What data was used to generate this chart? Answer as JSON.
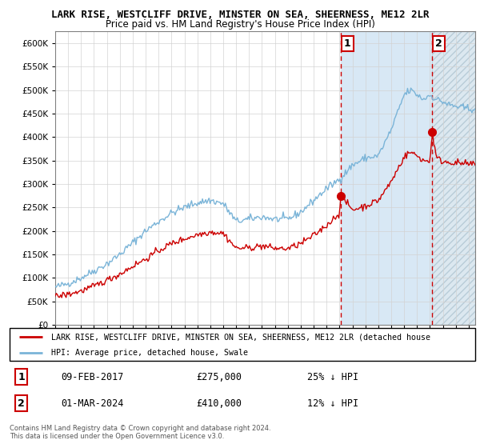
{
  "title": "LARK RISE, WESTCLIFF DRIVE, MINSTER ON SEA, SHEERNESS, ME12 2LR",
  "subtitle": "Price paid vs. HM Land Registry's House Price Index (HPI)",
  "yticks": [
    0,
    50000,
    100000,
    150000,
    200000,
    250000,
    300000,
    350000,
    400000,
    450000,
    500000,
    550000,
    600000
  ],
  "ylim": [
    0,
    625000
  ],
  "xlim_start": 1995.0,
  "xlim_end": 2027.5,
  "hpi_color": "#7ab4d8",
  "price_color": "#cc0000",
  "sale1_x": 2017.1,
  "sale1_y": 275000,
  "sale2_x": 2024.17,
  "sale2_y": 410000,
  "bg_color_between": "#d8e8f5",
  "bg_color_after": "#dce8f0",
  "hatch_color": "#b8ccd8",
  "legend_line1": "LARK RISE, WESTCLIFF DRIVE, MINSTER ON SEA, SHEERNESS, ME12 2LR (detached house",
  "legend_line2": "HPI: Average price, detached house, Swale",
  "annotation1_date": "09-FEB-2017",
  "annotation1_price": "£275,000",
  "annotation1_hpi": "25% ↓ HPI",
  "annotation2_date": "01-MAR-2024",
  "annotation2_price": "£410,000",
  "annotation2_hpi": "12% ↓ HPI",
  "footer": "Contains HM Land Registry data © Crown copyright and database right 2024.\nThis data is licensed under the Open Government Licence v3.0."
}
